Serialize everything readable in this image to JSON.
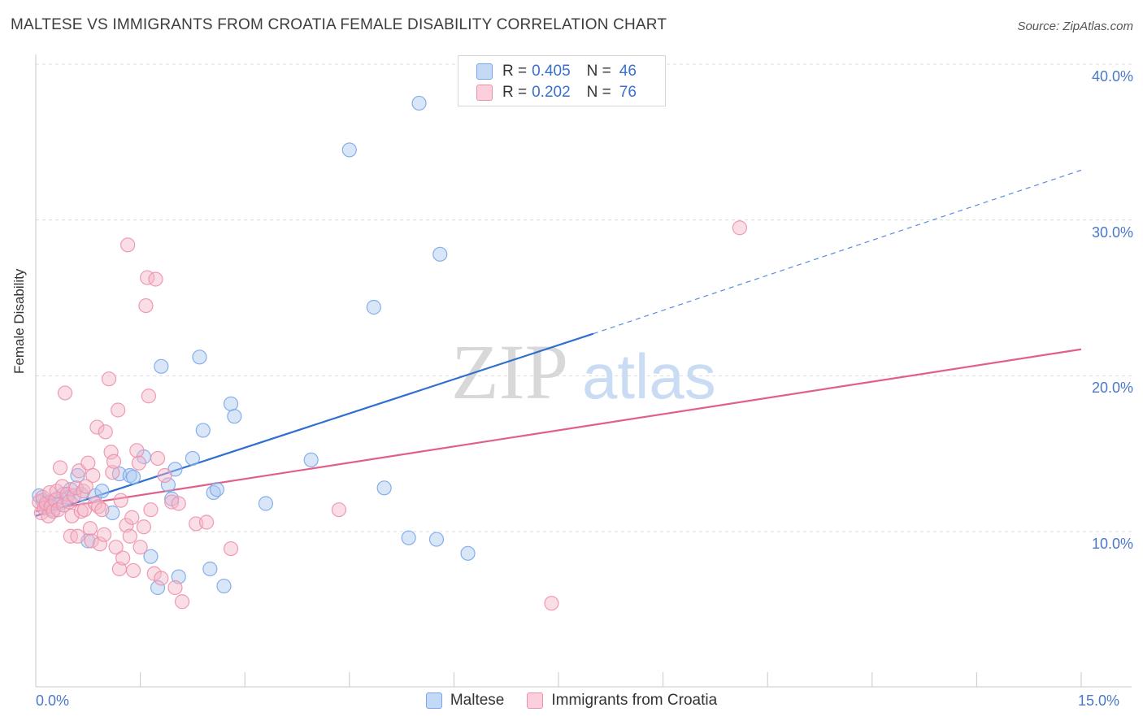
{
  "header": {
    "title": "MALTESE VS IMMIGRANTS FROM CROATIA FEMALE DISABILITY CORRELATION CHART",
    "source": "Source: ZipAtlas.com"
  },
  "watermark": {
    "zip": "ZIP",
    "atlas": "atlas"
  },
  "legend": {
    "rows": [
      {
        "r_label": "R =",
        "r_value": "0.405",
        "n_label": "N =",
        "n_value": "46",
        "color": "#a9c8f0"
      },
      {
        "r_label": "R =",
        "r_value": "0.202",
        "n_label": "N =",
        "n_value": "76",
        "color": "#f5b5c8"
      }
    ]
  },
  "chart_data": {
    "type": "scatter",
    "title": "MALTESE VS IMMIGRANTS FROM CROATIA FEMALE DISABILITY CORRELATION CHART",
    "xlabel": "",
    "ylabel": "Female Disability",
    "xlim": [
      0,
      15
    ],
    "ylim": [
      2,
      42
    ],
    "x_tick_labels": [
      "0.0%",
      "15.0%"
    ],
    "y_ticks": [
      10,
      20,
      30,
      40
    ],
    "y_tick_labels": [
      "10.0%",
      "20.0%",
      "30.0%",
      "40.0%"
    ],
    "grid": true,
    "legend_position": "top-center",
    "series": [
      {
        "name": "Maltese",
        "color": "#7aa6e8",
        "fill": "#a9c8f0",
        "line_color": "#2f6fd0",
        "trend": {
          "x0": 0,
          "y0": 11.0,
          "x1": 8.0,
          "y1": 22.7,
          "dash_to_x": 15,
          "dash_to_y": 33.2
        },
        "points": [
          [
            0.05,
            12.3
          ],
          [
            0.1,
            12.0
          ],
          [
            0.15,
            11.6
          ],
          [
            0.2,
            11.9
          ],
          [
            0.25,
            11.4
          ],
          [
            0.3,
            12.1
          ],
          [
            0.35,
            11.8
          ],
          [
            0.4,
            12.4
          ],
          [
            0.45,
            12.2
          ],
          [
            0.5,
            12.7
          ],
          [
            0.6,
            13.6
          ],
          [
            0.65,
            12.4
          ],
          [
            0.75,
            9.4
          ],
          [
            0.85,
            12.3
          ],
          [
            0.95,
            12.6
          ],
          [
            1.1,
            11.2
          ],
          [
            1.2,
            13.7
          ],
          [
            1.35,
            13.6
          ],
          [
            1.4,
            13.5
          ],
          [
            1.55,
            14.8
          ],
          [
            1.65,
            8.4
          ],
          [
            1.75,
            6.4
          ],
          [
            1.8,
            20.6
          ],
          [
            1.9,
            13.0
          ],
          [
            1.95,
            12.1
          ],
          [
            2.0,
            14.0
          ],
          [
            2.05,
            7.1
          ],
          [
            2.25,
            14.7
          ],
          [
            2.35,
            21.2
          ],
          [
            2.4,
            16.5
          ],
          [
            2.5,
            7.6
          ],
          [
            2.55,
            12.5
          ],
          [
            2.6,
            12.7
          ],
          [
            2.7,
            6.5
          ],
          [
            2.8,
            18.2
          ],
          [
            2.85,
            17.4
          ],
          [
            3.3,
            11.8
          ],
          [
            3.95,
            14.6
          ],
          [
            4.5,
            34.5
          ],
          [
            4.85,
            24.4
          ],
          [
            5.0,
            12.8
          ],
          [
            5.35,
            9.6
          ],
          [
            5.5,
            37.5
          ],
          [
            5.75,
            9.5
          ],
          [
            5.8,
            27.8
          ],
          [
            6.2,
            8.6
          ]
        ]
      },
      {
        "name": "Immigrants from Croatia",
        "color": "#ee8fab",
        "fill": "#f5b5c8",
        "line_color": "#e0608a",
        "trend": {
          "x0": 0,
          "y0": 11.3,
          "x1": 15,
          "y1": 21.7
        },
        "points": [
          [
            0.05,
            11.9
          ],
          [
            0.08,
            11.2
          ],
          [
            0.1,
            12.2
          ],
          [
            0.12,
            11.5
          ],
          [
            0.15,
            11.8
          ],
          [
            0.18,
            11.0
          ],
          [
            0.2,
            12.5
          ],
          [
            0.22,
            11.6
          ],
          [
            0.25,
            11.3
          ],
          [
            0.28,
            12.0
          ],
          [
            0.3,
            12.6
          ],
          [
            0.32,
            11.4
          ],
          [
            0.35,
            14.1
          ],
          [
            0.38,
            12.9
          ],
          [
            0.4,
            11.7
          ],
          [
            0.45,
            12.4
          ],
          [
            0.42,
            18.9
          ],
          [
            0.48,
            11.9
          ],
          [
            0.5,
            9.7
          ],
          [
            0.52,
            11.0
          ],
          [
            0.55,
            12.3
          ],
          [
            0.58,
            12.8
          ],
          [
            0.6,
            9.7
          ],
          [
            0.62,
            13.9
          ],
          [
            0.65,
            11.3
          ],
          [
            0.68,
            12.6
          ],
          [
            0.7,
            11.4
          ],
          [
            0.72,
            12.9
          ],
          [
            0.75,
            14.4
          ],
          [
            0.78,
            10.2
          ],
          [
            0.8,
            9.4
          ],
          [
            0.82,
            13.6
          ],
          [
            0.85,
            11.8
          ],
          [
            0.88,
            16.7
          ],
          [
            0.9,
            11.6
          ],
          [
            0.92,
            9.2
          ],
          [
            0.95,
            11.4
          ],
          [
            0.98,
            9.8
          ],
          [
            1.0,
            16.4
          ],
          [
            1.05,
            19.8
          ],
          [
            1.08,
            15.1
          ],
          [
            1.1,
            13.8
          ],
          [
            1.12,
            14.5
          ],
          [
            1.15,
            9.0
          ],
          [
            1.18,
            17.8
          ],
          [
            1.2,
            7.6
          ],
          [
            1.22,
            12.0
          ],
          [
            1.25,
            8.3
          ],
          [
            1.3,
            10.4
          ],
          [
            1.32,
            28.4
          ],
          [
            1.35,
            9.7
          ],
          [
            1.38,
            10.9
          ],
          [
            1.4,
            7.5
          ],
          [
            1.45,
            15.2
          ],
          [
            1.48,
            14.4
          ],
          [
            1.5,
            9.0
          ],
          [
            1.55,
            10.3
          ],
          [
            1.58,
            24.5
          ],
          [
            1.6,
            26.3
          ],
          [
            1.62,
            18.7
          ],
          [
            1.65,
            11.4
          ],
          [
            1.7,
            7.3
          ],
          [
            1.72,
            26.2
          ],
          [
            1.75,
            14.7
          ],
          [
            1.8,
            7.0
          ],
          [
            1.85,
            13.6
          ],
          [
            1.95,
            11.9
          ],
          [
            2.0,
            6.4
          ],
          [
            2.1,
            5.5
          ],
          [
            2.3,
            10.5
          ],
          [
            2.45,
            10.6
          ],
          [
            2.8,
            8.9
          ],
          [
            4.35,
            11.4
          ],
          [
            7.4,
            5.4
          ],
          [
            10.1,
            29.5
          ],
          [
            2.05,
            11.8
          ]
        ]
      }
    ]
  },
  "bottom_legend": [
    "Maltese",
    "Immigrants from Croatia"
  ]
}
